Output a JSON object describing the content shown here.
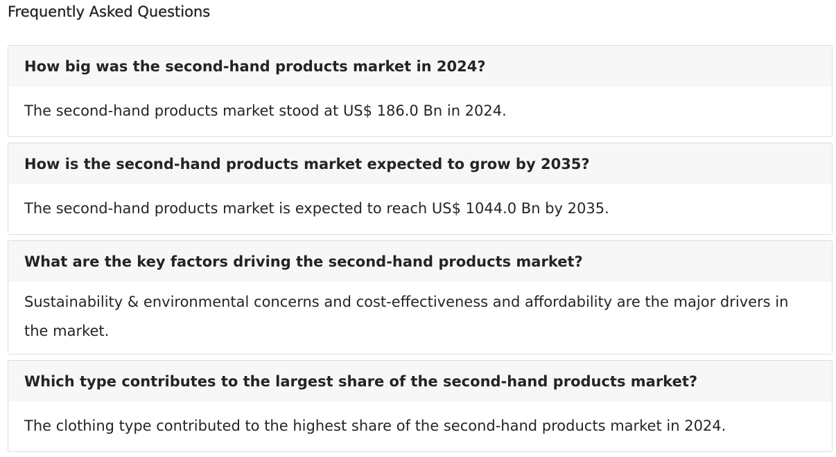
{
  "page": {
    "title": "Frequently Asked Questions"
  },
  "faqs": [
    {
      "question": "How big was the second-hand products market in 2024?",
      "answer": "The second-hand products market stood at US$ 186.0 Bn in 2024."
    },
    {
      "question": "How is the second-hand products market expected to grow by 2035?",
      "answer": "The second-hand products market is expected to reach US$ 1044.0 Bn by 2035."
    },
    {
      "question": "What are the key factors driving the second-hand products market?",
      "answer": "Sustainability & environmental concerns and cost-effectiveness and affordability are the major drivers in the market."
    },
    {
      "question": "Which type contributes to the largest share of the second-hand products market?",
      "answer": "The clothing type contributed to the highest share of the second-hand products market in 2024."
    }
  ]
}
